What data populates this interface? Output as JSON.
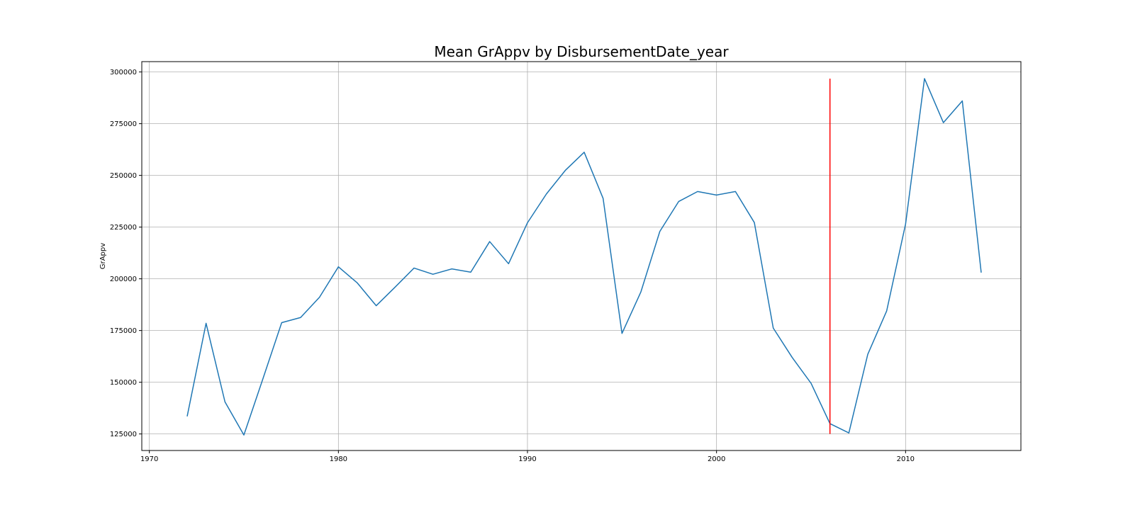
{
  "chart_data": {
    "type": "line",
    "title": "Mean GrAppv by DisbursementDate_year",
    "xlabel": "",
    "ylabel": "GrAppv",
    "xlim": [
      1969.6,
      2016.1
    ],
    "ylim": [
      117000,
      305000
    ],
    "x_ticks": [
      1970,
      1980,
      1990,
      2000,
      2010
    ],
    "y_ticks": [
      125000,
      150000,
      175000,
      200000,
      225000,
      250000,
      275000,
      300000
    ],
    "grid": true,
    "colors": {
      "series": "#1f77b4",
      "vline": "#ff0000",
      "grid": "#b0b0b0"
    },
    "series": [
      {
        "x": [
          1972,
          1973,
          1974,
          1975,
          1976,
          1977,
          1978,
          1979,
          1980,
          1981,
          1982,
          1983,
          1984,
          1985,
          1986,
          1987,
          1988,
          1989,
          1990,
          1991,
          1992,
          1993,
          1994,
          1995,
          1996,
          1997,
          1998,
          1999,
          2000,
          2001,
          2002,
          2003,
          2004,
          2005,
          2006,
          2007,
          2008,
          2009,
          2010,
          2011,
          2012,
          2013,
          2014
        ],
        "values": [
          133500,
          178500,
          140500,
          124500,
          151500,
          178800,
          181300,
          191100,
          205800,
          198000,
          187000,
          196000,
          205200,
          202200,
          204800,
          203200,
          218000,
          207300,
          227100,
          241000,
          252400,
          261200,
          238900,
          173600,
          193700,
          222900,
          237400,
          242200,
          240500,
          242200,
          227200,
          176200,
          162000,
          149500,
          130000,
          125500,
          163500,
          184500,
          226500,
          296800,
          275500,
          286000,
          203000
        ]
      }
    ],
    "vline": {
      "x": 2006,
      "ymin": 125000,
      "ymax": 296800
    }
  }
}
